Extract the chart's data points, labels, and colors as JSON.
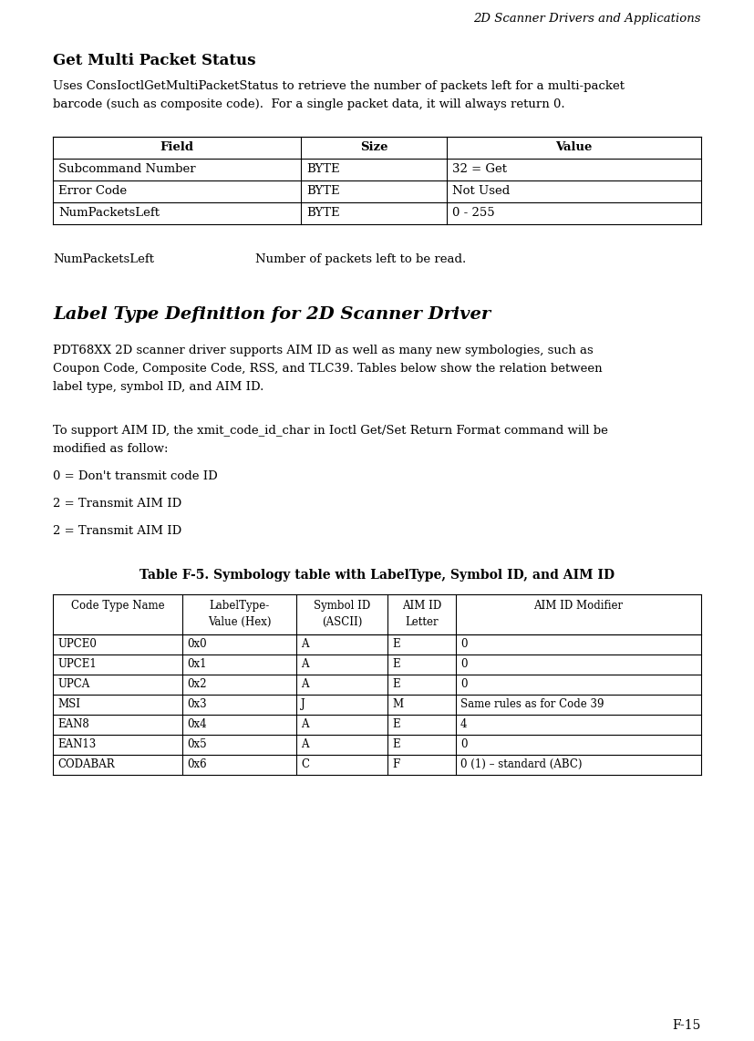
{
  "header_text": "2D Scanner Drivers and Applications",
  "section1_title": "Get Multi Packet Status",
  "section1_body_line1": "Uses ConsIoctlGetMultiPacketStatus to retrieve the number of packets left for a multi-packet",
  "section1_body_line2": "barcode (such as composite code).  For a single packet data, it will always return 0.",
  "table1_headers": [
    "Field",
    "Size",
    "Value"
  ],
  "table1_rows": [
    [
      "Subcommand Number",
      "BYTE",
      "32 = Get"
    ],
    [
      "Error Code",
      "BYTE",
      "Not Used"
    ],
    [
      "NumPacketsLeft",
      "BYTE",
      "0 - 255"
    ]
  ],
  "note_label": "NumPacketsLeft",
  "note_text": "Number of packets left to be read.",
  "section2_title": "Label Type Definition for 2D Scanner Driver",
  "section2_body1_lines": [
    "PDT68XX 2D scanner driver supports AIM ID as well as many new symbologies, such as",
    "Coupon Code, Composite Code, RSS, and TLC39. Tables below show the relation between",
    "label type, symbol ID, and AIM ID."
  ],
  "section2_body2_lines": [
    "To support AIM ID, the xmit_code_id_char in Ioctl Get/Set Return Format command will be",
    "modified as follow:"
  ],
  "aim_lines": [
    "0 = Don't transmit code ID",
    "2 = Transmit AIM ID",
    "2 = Transmit AIM ID"
  ],
  "table2_title": "Table F-5. Symbology table with LabelType, Symbol ID, and AIM ID",
  "table2_header_line1": [
    "Code Type Name",
    "LabelType-",
    "Symbol ID",
    "AIM ID",
    "AIM ID Modifier"
  ],
  "table2_header_line2": [
    "",
    "Value (Hex)",
    "(ASCII)",
    "Letter",
    ""
  ],
  "table2_rows": [
    [
      "UPCE0",
      "0x0",
      "A",
      "E",
      "0"
    ],
    [
      "UPCE1",
      "0x1",
      "A",
      "E",
      "0"
    ],
    [
      "UPCA",
      "0x2",
      "A",
      "E",
      "0"
    ],
    [
      "MSI",
      "0x3",
      "J",
      "M",
      "Same rules as for Code 39"
    ],
    [
      "EAN8",
      "0x4",
      "A",
      "E",
      "4"
    ],
    [
      "EAN13",
      "0x5",
      "A",
      "E",
      "0"
    ],
    [
      "CODABAR",
      "0x6",
      "C",
      "F",
      "0 (1) – standard (ABC)"
    ]
  ],
  "footer_text": "F-15",
  "bg_color": "#ffffff",
  "text_color": "#000000"
}
